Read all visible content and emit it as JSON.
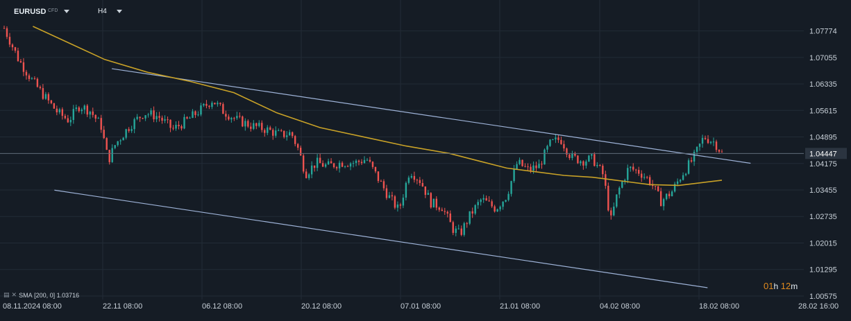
{
  "header": {
    "symbol": "EURUSD",
    "symbol_tag": "CFD",
    "timeframe": "H4"
  },
  "indicator": {
    "label": "SMA",
    "params": "[200, 0]",
    "value": "1.03716"
  },
  "timer": {
    "hours": "01",
    "h_unit": "h",
    "minutes": "12",
    "m_unit": "m"
  },
  "colors": {
    "background": "#151c25",
    "up": "#26a69a",
    "down": "#ef5350",
    "sma": "#c9a227",
    "channel": "#9fb4d9",
    "price_line": "#5f6b7a",
    "price_tag": "#2b3440"
  },
  "chart_data": {
    "type": "candlestick",
    "title": "",
    "x_ticks": [
      "08.11.2024 08:00",
      "22.11 08:00",
      "06.12 08:00",
      "20.12 08:00",
      "07.01 08:00",
      "21.01 08:00",
      "04.02 08:00",
      "18.02 08:00",
      "28.02 16:00"
    ],
    "y_ticks": [
      1.07774,
      1.07055,
      1.06335,
      1.05615,
      1.04895,
      1.04175,
      1.03455,
      1.02735,
      1.02015,
      1.01295,
      1.00575
    ],
    "ylim": [
      1.0048,
      1.0805
    ],
    "current_price": "1.04447",
    "close_path": [
      [
        0,
        1.0785
      ],
      [
        0.02,
        1.07
      ],
      [
        0.04,
        1.064
      ],
      [
        0.06,
        1.059
      ],
      [
        0.075,
        1.0555
      ],
      [
        0.09,
        1.0535
      ],
      [
        0.105,
        1.0575
      ],
      [
        0.12,
        1.056
      ],
      [
        0.135,
        1.052
      ],
      [
        0.145,
        1.0425
      ],
      [
        0.155,
        1.047
      ],
      [
        0.175,
        1.052
      ],
      [
        0.195,
        1.0555
      ],
      [
        0.215,
        1.0545
      ],
      [
        0.235,
        1.051
      ],
      [
        0.255,
        1.0535
      ],
      [
        0.275,
        1.0565
      ],
      [
        0.29,
        1.059
      ],
      [
        0.305,
        1.056
      ],
      [
        0.325,
        1.0535
      ],
      [
        0.345,
        1.052
      ],
      [
        0.365,
        1.051
      ],
      [
        0.385,
        1.0495
      ],
      [
        0.4,
        1.05
      ],
      [
        0.41,
        1.0455
      ],
      [
        0.42,
        1.039
      ],
      [
        0.435,
        1.042
      ],
      [
        0.45,
        1.041
      ],
      [
        0.47,
        1.042
      ],
      [
        0.49,
        1.042
      ],
      [
        0.505,
        1.043
      ],
      [
        0.52,
        1.038
      ],
      [
        0.535,
        1.033
      ],
      [
        0.55,
        1.029
      ],
      [
        0.565,
        1.04
      ],
      [
        0.58,
        1.037
      ],
      [
        0.595,
        1.031
      ],
      [
        0.61,
        1.03
      ],
      [
        0.625,
        1.024
      ],
      [
        0.635,
        1.0225
      ],
      [
        0.65,
        1.028
      ],
      [
        0.665,
        1.032
      ],
      [
        0.685,
        1.0295
      ],
      [
        0.7,
        1.033
      ],
      [
        0.715,
        1.042
      ],
      [
        0.73,
        1.04
      ],
      [
        0.745,
        1.041
      ],
      [
        0.76,
        1.047
      ],
      [
        0.775,
        1.0485
      ],
      [
        0.79,
        1.0435
      ],
      [
        0.805,
        1.0425
      ],
      [
        0.82,
        1.043
      ],
      [
        0.835,
        1.0385
      ],
      [
        0.845,
        1.026
      ],
      [
        0.855,
        1.034
      ],
      [
        0.87,
        1.0405
      ],
      [
        0.885,
        1.0395
      ],
      [
        0.9,
        1.037
      ],
      [
        0.915,
        1.0315
      ],
      [
        0.93,
        1.034
      ],
      [
        0.945,
        1.039
      ],
      [
        0.96,
        1.043
      ],
      [
        0.975,
        1.049
      ],
      [
        0.99,
        1.0475
      ],
      [
        1.0,
        1.0445
      ]
    ],
    "sma_path": [
      [
        0.04,
        1.079
      ],
      [
        0.09,
        1.0745
      ],
      [
        0.14,
        1.07
      ],
      [
        0.2,
        1.0665
      ],
      [
        0.26,
        1.064
      ],
      [
        0.32,
        1.061
      ],
      [
        0.38,
        1.0555
      ],
      [
        0.44,
        1.0515
      ],
      [
        0.5,
        1.049
      ],
      [
        0.56,
        1.0465
      ],
      [
        0.62,
        1.0445
      ],
      [
        0.66,
        1.0425
      ],
      [
        0.7,
        1.0405
      ],
      [
        0.74,
        1.0395
      ],
      [
        0.78,
        1.0385
      ],
      [
        0.82,
        1.038
      ],
      [
        0.86,
        1.037
      ],
      [
        0.9,
        1.036
      ],
      [
        0.94,
        1.0358
      ],
      [
        0.97,
        1.0365
      ],
      [
        1.0,
        1.0372
      ]
    ],
    "channel_upper": [
      [
        0.15,
        1.0675
      ],
      [
        1.04,
        1.0418
      ]
    ],
    "channel_lower": [
      [
        0.07,
        1.0345
      ],
      [
        0.98,
        1.008
      ]
    ]
  }
}
